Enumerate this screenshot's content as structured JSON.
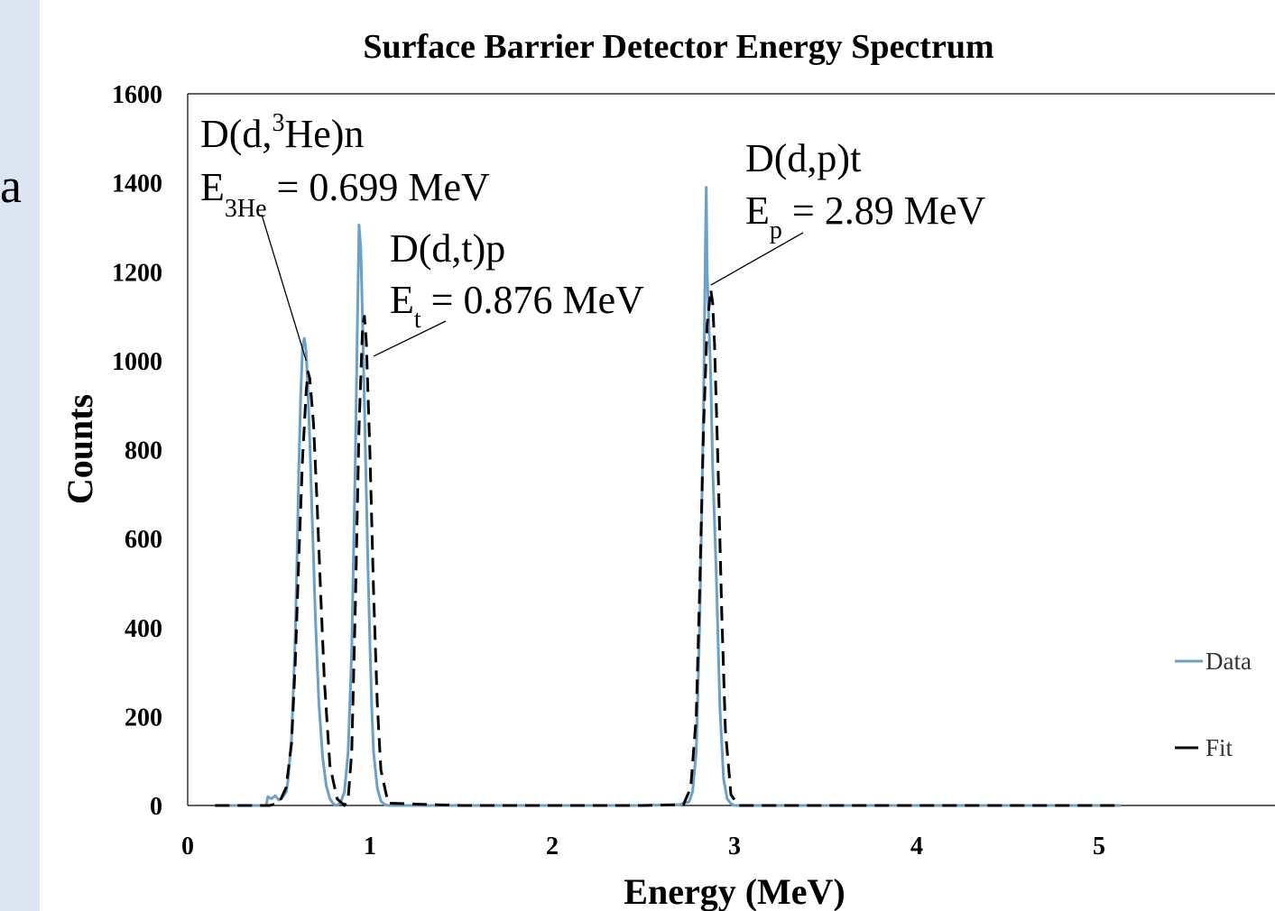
{
  "side": {
    "glyph": "a"
  },
  "chart_data": {
    "type": "line",
    "title": "Surface Barrier Detector Energy Spectrum",
    "xlabel": "Energy (MeV)",
    "ylabel": "Counts",
    "xlim": [
      0,
      5.9
    ],
    "ylim": [
      0,
      1600
    ],
    "xticks": [
      0,
      1,
      2,
      3,
      4,
      5
    ],
    "yticks": [
      0,
      200,
      400,
      600,
      800,
      1000,
      1200,
      1400,
      1600
    ],
    "grid": false,
    "legend": {
      "position": "right",
      "entries": [
        "Data",
        "Fit"
      ]
    },
    "series": [
      {
        "name": "Data",
        "color": "#6aa0cc",
        "style": "solid",
        "x": [
          0.15,
          0.43,
          0.44,
          0.46,
          0.48,
          0.5,
          0.52,
          0.54,
          0.55,
          0.57,
          0.59,
          0.6,
          0.61,
          0.62,
          0.63,
          0.64,
          0.65,
          0.66,
          0.67,
          0.68,
          0.69,
          0.7,
          0.72,
          0.74,
          0.76,
          0.78,
          0.8,
          0.82,
          0.84,
          0.86,
          0.88,
          0.9,
          0.92,
          0.93,
          0.94,
          0.95,
          0.96,
          0.97,
          0.98,
          0.99,
          1.0,
          1.01,
          1.02,
          1.04,
          1.06,
          1.08,
          1.1,
          1.5,
          2.0,
          2.5,
          2.7,
          2.75,
          2.77,
          2.79,
          2.81,
          2.83,
          2.84,
          2.845,
          2.85,
          2.86,
          2.87,
          2.88,
          2.9,
          2.92,
          2.94,
          2.96,
          2.98,
          3.0,
          3.5,
          4.0,
          4.5,
          5.12
        ],
        "values": [
          0,
          0,
          20,
          15,
          22,
          12,
          18,
          30,
          55,
          150,
          380,
          560,
          760,
          920,
          1030,
          1050,
          1020,
          930,
          820,
          680,
          560,
          430,
          230,
          110,
          45,
          15,
          3,
          0,
          8,
          30,
          120,
          350,
          780,
          1060,
          1305,
          1250,
          1080,
          900,
          700,
          520,
          360,
          220,
          120,
          40,
          10,
          2,
          0,
          0,
          0,
          0,
          2,
          8,
          30,
          120,
          420,
          900,
          1250,
          1390,
          1200,
          1080,
          960,
          760,
          520,
          220,
          60,
          15,
          4,
          0,
          0,
          0,
          0,
          0
        ]
      },
      {
        "name": "Fit",
        "color": "#000000",
        "style": "dashed",
        "x": [
          0.15,
          0.45,
          0.5,
          0.54,
          0.57,
          0.59,
          0.61,
          0.63,
          0.65,
          0.66,
          0.67,
          0.69,
          0.71,
          0.73,
          0.75,
          0.78,
          0.82,
          0.86,
          0.88,
          0.9,
          0.92,
          0.94,
          0.96,
          0.97,
          0.98,
          1.0,
          1.02,
          1.04,
          1.06,
          1.1,
          1.5,
          2.0,
          2.5,
          2.72,
          2.76,
          2.79,
          2.81,
          2.83,
          2.85,
          2.87,
          2.88,
          2.89,
          2.91,
          2.93,
          2.95,
          2.98,
          3.02,
          3.5,
          4.0,
          4.5,
          5.12
        ],
        "values": [
          0,
          0,
          5,
          40,
          140,
          320,
          560,
          780,
          930,
          975,
          960,
          860,
          680,
          470,
          280,
          90,
          15,
          0,
          15,
          120,
          450,
          850,
          1080,
          1100,
          1040,
          790,
          480,
          230,
          80,
          5,
          0,
          0,
          0,
          2,
          40,
          200,
          500,
          850,
          1080,
          1160,
          1130,
          1040,
          760,
          430,
          170,
          25,
          0,
          0,
          0,
          0,
          0
        ]
      }
    ],
    "annotations": [
      {
        "main": "D(d,",
        "sup": "3",
        "rest": "He)n",
        "line2_main": "E",
        "line2_sub": "3He",
        "line2_rest": " = 0.699 MeV",
        "anchor_x": 0.65,
        "anchor_y": 1000
      },
      {
        "main": "D(d,t)p",
        "line2_main": "E",
        "line2_sub": "t",
        "line2_rest": " = 0.876 MeV",
        "anchor_x": 1.02,
        "anchor_y": 1010
      },
      {
        "main": "D(d,p)t",
        "line2_main": "E",
        "line2_sub": "p",
        "line2_rest": " = 2.89 MeV",
        "anchor_x": 2.87,
        "anchor_y": 1170
      }
    ]
  }
}
